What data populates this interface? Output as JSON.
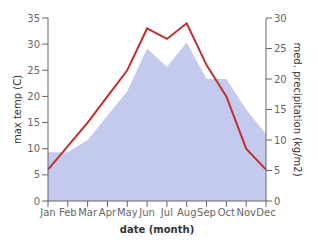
{
  "chart_data": {
    "type": "line",
    "xlabel": "date (month)",
    "ylabel": "max temp (C)",
    "y2label": "med. precipitation (kg/m2)",
    "categories": [
      "Jan",
      "Feb",
      "Mar",
      "Apr",
      "May",
      "Jun",
      "Jul",
      "Aug",
      "Sep",
      "Oct",
      "Nov",
      "Dec"
    ],
    "series": [
      {
        "type": "area",
        "axis": "y2",
        "color": "#b0b8e8",
        "values": [
          8,
          8,
          10,
          14,
          18,
          25,
          22,
          26,
          20,
          20,
          15,
          11
        ]
      },
      {
        "type": "line",
        "color": "#c03030",
        "values": [
          6,
          10.5,
          15,
          20,
          25,
          33,
          31,
          34,
          26,
          20,
          10,
          6
        ]
      }
    ],
    "ylim": [
      0,
      35
    ],
    "yticks": [
      0,
      5,
      10,
      15,
      20,
      25,
      30,
      35
    ],
    "y2lim": [
      0,
      30
    ],
    "y2ticks": [
      0,
      5,
      10,
      15,
      20,
      25,
      30
    ],
    "grid": false
  }
}
